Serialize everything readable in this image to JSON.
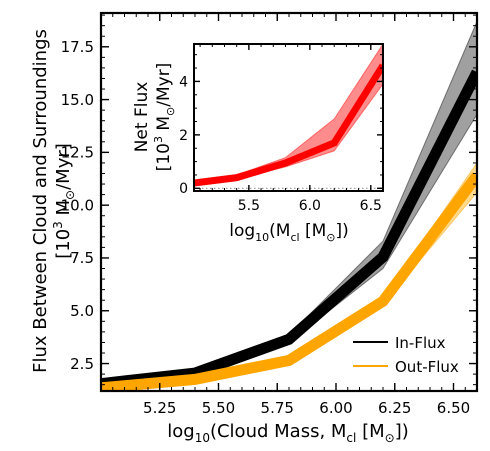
{
  "chart_data": [
    {
      "type": "line",
      "xlabel": "log₁₀(Cloud Mass, Mᴄʟ [M⊙])",
      "xlabel_parts": {
        "pre": "log",
        "sub1": "10",
        "mid": "(Cloud Mass, M",
        "sub2": "cl",
        "post": " [M",
        "sun": "⊙",
        "end": "])"
      },
      "ylabel_line1": "Flux Between Cloud and Surroundings",
      "ylabel_line2_parts": {
        "pre": "[10",
        "sup": "3",
        "mid": " M",
        "sun": "⊙",
        "post": "/Myr]"
      },
      "xlim": [
        5.0,
        6.6
      ],
      "ylim": [
        1.2,
        19.1
      ],
      "xticks": [
        "5.25",
        "5.50",
        "5.75",
        "6.00",
        "6.25",
        "6.50"
      ],
      "xtick_values": [
        5.25,
        5.5,
        5.75,
        6.0,
        6.25,
        6.5
      ],
      "yticks": [
        "2.5",
        "5.0",
        "7.5",
        "10.0",
        "12.5",
        "15.0",
        "17.5"
      ],
      "ytick_values": [
        2.5,
        5.0,
        7.5,
        10.0,
        12.5,
        15.0,
        17.5
      ],
      "x": [
        5.0,
        5.4,
        5.8,
        6.2,
        6.6
      ],
      "series": [
        {
          "name": "In-Flux",
          "color": "#000000",
          "band_color": "#808080",
          "values": [
            1.55,
            2.05,
            3.65,
            7.55,
            16.3
          ],
          "lower": [
            1.45,
            1.95,
            3.5,
            7.0,
            14.3
          ],
          "upper": [
            1.65,
            2.15,
            3.85,
            8.3,
            18.7
          ]
        },
        {
          "name": "Out-Flux",
          "color": "#ffa500",
          "band_color": "#ffcc66",
          "values": [
            1.35,
            1.75,
            2.65,
            5.45,
            11.4
          ],
          "lower": [
            1.3,
            1.7,
            2.55,
            5.3,
            10.6
          ],
          "upper": [
            1.45,
            1.85,
            2.8,
            5.6,
            12.0
          ]
        }
      ],
      "legend_position": "lower-right"
    },
    {
      "type": "line",
      "xlabel_parts": {
        "pre": "log",
        "sub1": "10",
        "mid": "(M",
        "sub2": "cl",
        "post": " [M",
        "sun": "⊙",
        "end": "])"
      },
      "ylabel_line1": "Net Flux",
      "ylabel_line2_parts": {
        "pre": "[10",
        "sup": "3",
        "mid": " M",
        "sun": "⊙",
        "post": "/Myr]"
      },
      "xlim": [
        5.05,
        6.6
      ],
      "ylim": [
        -0.1,
        5.4
      ],
      "xticks": [
        "5.5",
        "6.0",
        "6.5"
      ],
      "xtick_values": [
        5.5,
        6.0,
        6.5
      ],
      "yticks": [
        "0",
        "2",
        "4"
      ],
      "ytick_values": [
        0,
        2,
        4
      ],
      "x": [
        5.05,
        5.4,
        5.8,
        6.2,
        6.6
      ],
      "series": [
        {
          "color": "#ff0000",
          "band_color": "#ff6666",
          "values": [
            0.2,
            0.4,
            0.95,
            1.7,
            4.6
          ],
          "lower": [
            0.15,
            0.35,
            0.8,
            1.4,
            3.9
          ],
          "upper": [
            0.25,
            0.5,
            1.15,
            2.6,
            5.4
          ]
        }
      ],
      "reference_line": {
        "y": 0.0,
        "style": "dotted",
        "color": "#888888"
      }
    }
  ]
}
